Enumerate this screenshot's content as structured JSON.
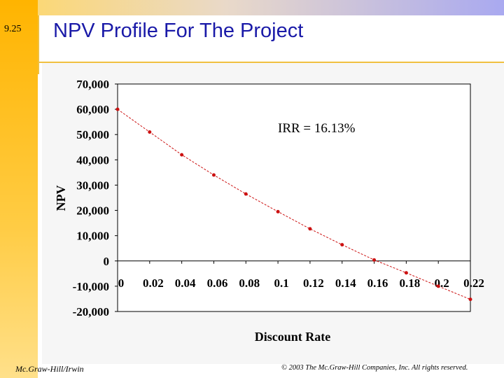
{
  "slide": {
    "number": "9.25",
    "title": "NPV Profile For The Project"
  },
  "footer": {
    "publisher": "Mc.Graw-Hill/Irwin",
    "copyright": "© 2003 The Mc.Graw-Hill Companies, Inc. All rights reserved."
  },
  "colors": {
    "series_color": "#cc1111",
    "title_color": "#1a1aa8"
  },
  "chart_data": {
    "type": "line",
    "title": "",
    "xlabel": "Discount Rate",
    "ylabel": "NPV",
    "annotation": "IRR = 16.13%",
    "xlim": [
      0,
      0.22
    ],
    "ylim": [
      -20000,
      70000
    ],
    "x_ticks": [
      0,
      0.02,
      0.04,
      0.06,
      0.08,
      0.1,
      0.12,
      0.14,
      0.16,
      0.18,
      0.2,
      0.22
    ],
    "x_tick_labels": [
      "0",
      "0.02",
      "0.04",
      "0.06",
      "0.08",
      "0.1",
      "0.12",
      "0.14",
      "0.16",
      "0.18",
      "0.2",
      "0.22"
    ],
    "y_ticks": [
      -20000,
      -10000,
      0,
      10000,
      20000,
      30000,
      40000,
      50000,
      60000,
      70000
    ],
    "y_tick_labels": [
      "-20,000",
      "-10,000",
      "0",
      "10,000",
      "20,000",
      "30,000",
      "40,000",
      "50,000",
      "60,000",
      "70,000"
    ],
    "grid": false,
    "series": [
      {
        "name": "NPV",
        "x": [
          0,
          0.02,
          0.04,
          0.06,
          0.08,
          0.1,
          0.12,
          0.14,
          0.16,
          0.18,
          0.2,
          0.22
        ],
        "values": [
          60000,
          51000,
          42000,
          34000,
          26500,
          19500,
          12700,
          6400,
          400,
          -4700,
          -10000,
          -15200
        ]
      }
    ]
  }
}
